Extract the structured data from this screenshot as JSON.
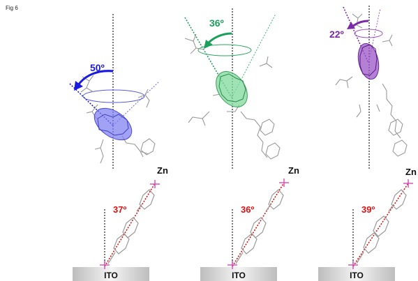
{
  "figure": {
    "label": "Fig 6",
    "panels": [
      {
        "molecule_tilt_angle": "50º",
        "molecule_tilt_color": "#1a1ae0",
        "linker_angle": "37º",
        "linker_angle_color": "#e01010",
        "metal_label": "Zn",
        "substrate_label": "ITO",
        "ellipsoid_color": "#7a7af0"
      },
      {
        "molecule_tilt_angle": "36º",
        "molecule_tilt_color": "#1aa05a",
        "linker_angle": "36º",
        "linker_angle_color": "#e01010",
        "metal_label": "Zn",
        "substrate_label": "ITO",
        "ellipsoid_color": "#7fd89a"
      },
      {
        "molecule_tilt_angle": "22º",
        "molecule_tilt_color": "#7a2aa8",
        "linker_angle": "39º",
        "linker_angle_color": "#e01010",
        "metal_label": "Zn",
        "substrate_label": "ITO",
        "ellipsoid_color": "#9a55c8"
      }
    ]
  }
}
